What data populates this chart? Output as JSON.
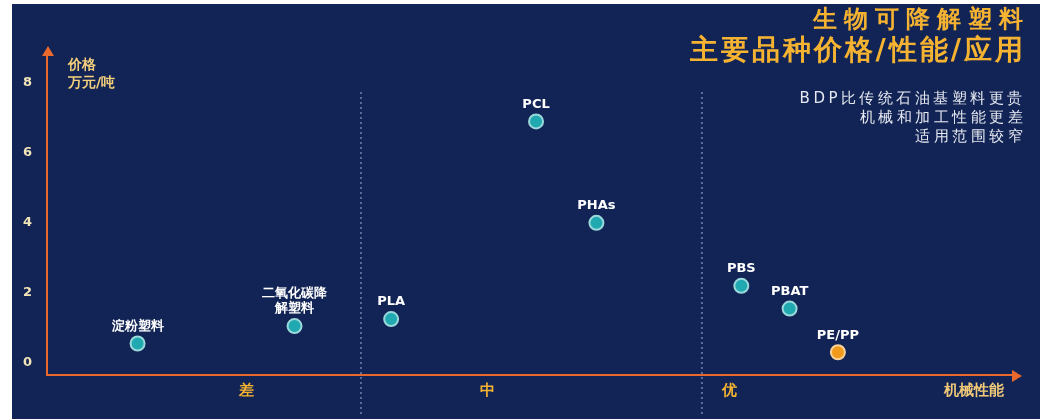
{
  "chart_data": {
    "type": "scatter",
    "title": "生物可降解塑料",
    "subtitle": "主要品种价格/性能/应用",
    "xlabel": "机械性能",
    "ylabel": "价格",
    "categories": [
      null,
      null,
      null,
      null,
      null,
      null,
      null,
      null,
      null,
      null,
      null,
      null,
      null,
      null,
      null,
      null,
      "差",
      null,
      null,
      null,
      null,
      null,
      null,
      null,
      null,
      null,
      null,
      null,
      null,
      null,
      null,
      null,
      null,
      null,
      null,
      null,
      "中",
      null,
      null,
      null,
      null,
      null,
      null,
      null,
      null,
      null,
      null,
      null,
      null,
      null,
      null,
      null,
      null,
      null,
      null,
      null,
      "优",
      null,
      null,
      null,
      null,
      null,
      null,
      null,
      null,
      null,
      null,
      null,
      null,
      null,
      null,
      null,
      null,
      null,
      null,
      null,
      null,
      null,
      null,
      null
    ],
    "values": [
      null,
      null,
      null,
      null,
      null,
      null,
      null,
      0.55,
      null,
      null,
      null,
      null,
      null,
      null,
      null,
      null,
      null,
      null,
      null,
      null,
      1.05,
      null,
      null,
      null,
      null,
      null,
      null,
      null,
      1.25,
      null,
      null,
      null,
      null,
      null,
      null,
      null,
      null,
      null,
      null,
      null,
      6.9,
      null,
      null,
      null,
      null,
      4.0,
      null,
      null,
      null,
      null,
      null,
      null,
      null,
      null,
      null,
      null,
      null,
      2.2,
      null,
      null,
      null,
      1.55,
      null,
      null,
      null,
      0.3,
      null,
      null,
      null,
      null,
      null,
      null,
      null,
      null,
      null,
      null,
      null,
      null,
      null,
      null
    ],
    "value_labels": [
      null,
      null,
      null,
      null,
      null,
      null,
      null,
      "淀粉塑料",
      null,
      null,
      null,
      null,
      null,
      null,
      null,
      null,
      null,
      null,
      null,
      null,
      "二氧化碳降解塑料",
      null,
      null,
      null,
      null,
      null,
      null,
      null,
      "PLA",
      null,
      null,
      null,
      null,
      null,
      null,
      null,
      null,
      null,
      null,
      null,
      "PCL",
      null,
      null,
      null,
      null,
      "PHAs",
      null,
      null,
      null,
      null,
      null,
      null,
      null,
      null,
      null,
      null,
      null,
      "PBS",
      null,
      null,
      null,
      "PBAT",
      null,
      null,
      null,
      "PE/PP",
      null,
      null,
      null,
      null,
      null,
      null,
      null,
      null,
      null,
      null,
      null,
      null,
      null,
      null
    ],
    "colors": [
      null,
      null,
      null,
      null,
      null,
      null,
      null,
      "#20a9b0",
      null,
      null,
      null,
      null,
      null,
      null,
      null,
      null,
      null,
      null,
      null,
      null,
      "#20a9b0",
      null,
      null,
      null,
      null,
      null,
      null,
      null,
      "#20a9b0",
      null,
      null,
      null,
      null,
      null,
      null,
      null,
      null,
      null,
      null,
      null,
      "#20a9b0",
      null,
      null,
      null,
      null,
      "#20a9b0",
      null,
      null,
      null,
      null,
      null,
      null,
      null,
      null,
      null,
      null,
      null,
      "#20a9b0",
      null,
      null,
      null,
      "#20a9b0",
      null,
      null,
      null,
      "#f29a1c",
      null,
      null,
      null,
      null,
      null,
      null,
      null,
      null,
      null,
      null,
      null,
      null,
      null,
      null
    ],
    "marker": "circle",
    "ylim": [
      -0.35,
      8.8
    ],
    "yticks": [
      0,
      2,
      4,
      6,
      8
    ],
    "annotations": [
      "万元/吨",
      "BDP比传统石油基塑料更贵",
      "机械和加工性能更差",
      "适用范围较窄"
    ]
  }
}
